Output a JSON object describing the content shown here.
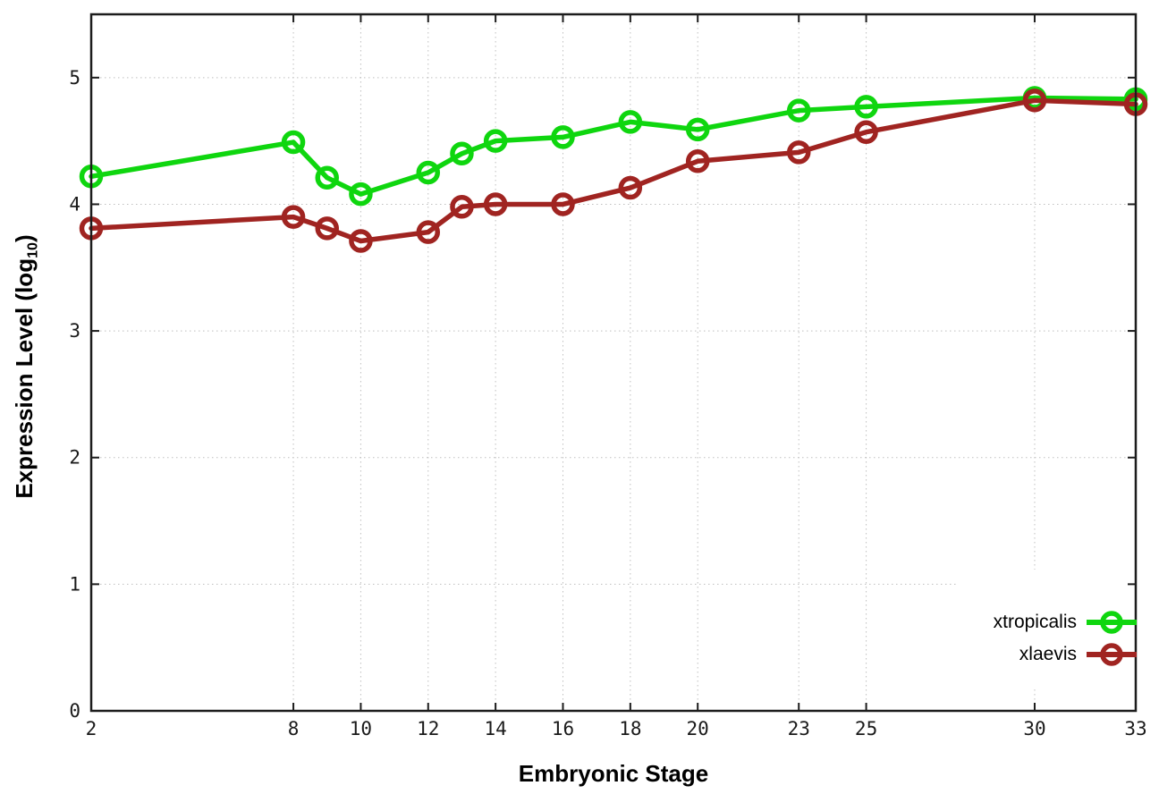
{
  "chart_data": {
    "type": "line",
    "title": "",
    "xlabel": "Embryonic Stage",
    "ylabel": "Expression Level (log10)",
    "ylabel_parts": {
      "pre": "Expression Level (log",
      "sub": "10",
      "post": ")"
    },
    "x": [
      2,
      8,
      9,
      10,
      12,
      13,
      14,
      16,
      18,
      20,
      23,
      25,
      30,
      33
    ],
    "series": [
      {
        "name": "xtropicalis",
        "color": "#0fd60f",
        "values": [
          4.22,
          4.49,
          4.21,
          4.08,
          4.25,
          4.4,
          4.5,
          4.53,
          4.65,
          4.59,
          4.74,
          4.77,
          4.84,
          4.83
        ]
      },
      {
        "name": "xlaevis",
        "color": "#a02421",
        "values": [
          3.81,
          3.9,
          3.81,
          3.71,
          3.78,
          3.98,
          4.0,
          4.0,
          4.13,
          4.34,
          4.41,
          4.57,
          4.82,
          4.79
        ]
      }
    ],
    "xticks": [
      "2",
      "8",
      "10",
      "12",
      "14",
      "16",
      "18",
      "20",
      "23",
      "25",
      "30",
      "33"
    ],
    "xtick_values": [
      2,
      8,
      10,
      12,
      14,
      16,
      18,
      20,
      23,
      25,
      30,
      33
    ],
    "yticks": [
      "0",
      "1",
      "2",
      "3",
      "4",
      "5"
    ],
    "ytick_values": [
      0,
      1,
      2,
      3,
      4,
      5
    ],
    "xlim": [
      2,
      33
    ],
    "ylim": [
      0,
      5.5
    ],
    "grid": true,
    "legend_position": "bottom-right",
    "marker": "open-circle"
  },
  "colors": {
    "background": "#ffffff",
    "grid": "#bfbfbf",
    "axis": "#1c1c1c",
    "tick_text": "#1a1a1a"
  }
}
